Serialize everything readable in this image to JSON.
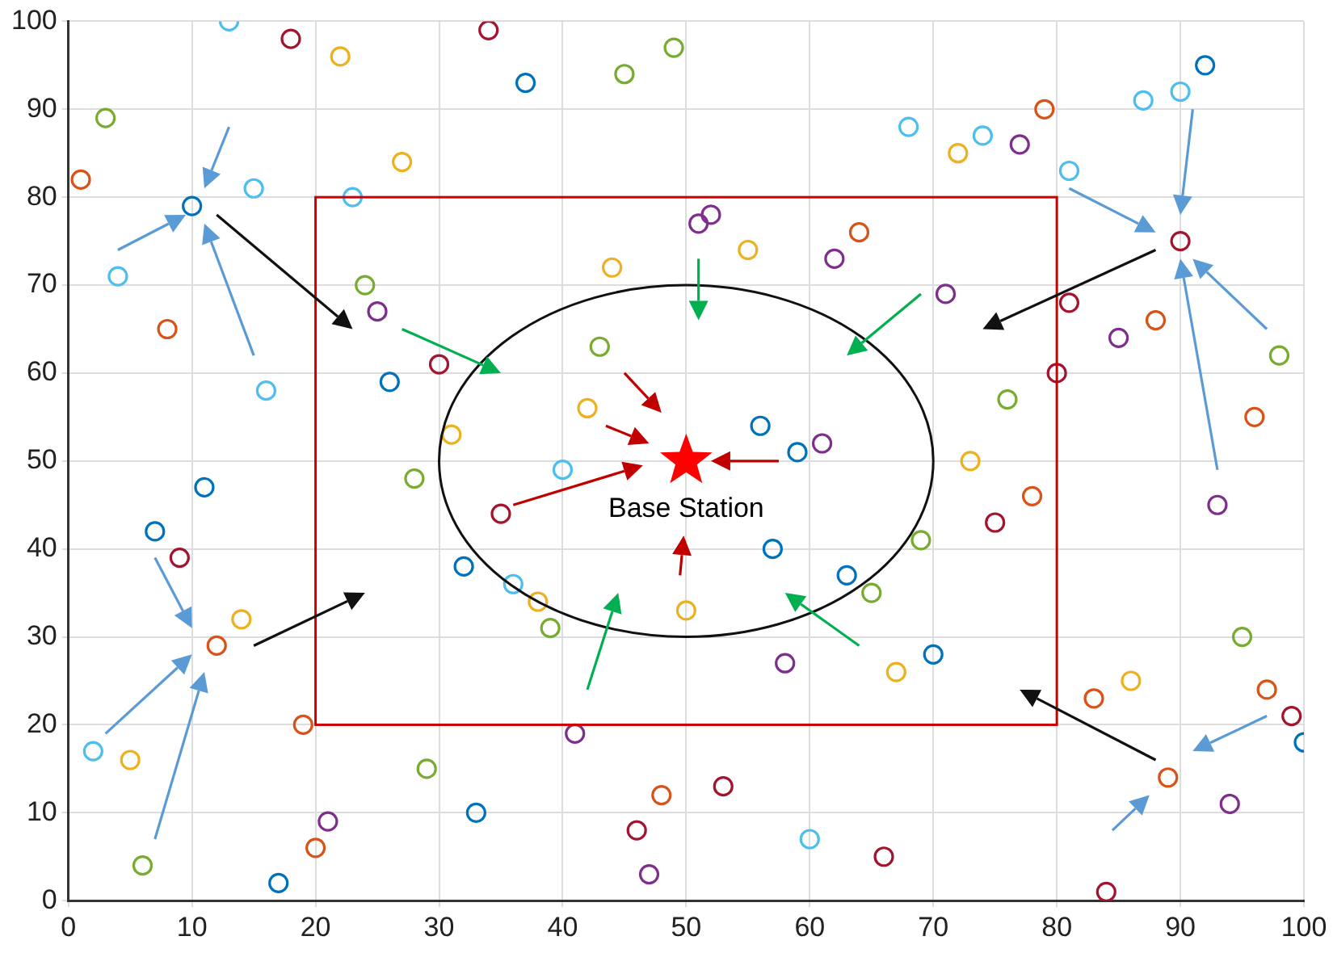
{
  "chart_data": {
    "type": "scatter",
    "xlim": [
      0,
      100
    ],
    "ylim": [
      0,
      100
    ],
    "xticks": [
      0,
      10,
      20,
      30,
      40,
      50,
      60,
      70,
      80,
      90,
      100
    ],
    "yticks": [
      0,
      10,
      20,
      30,
      40,
      50,
      60,
      70,
      80,
      90,
      100
    ],
    "grid": true,
    "marker": "circle",
    "series": [
      {
        "color": "#0072bd",
        "x": [
          10,
          26,
          11,
          7,
          32,
          33,
          17,
          37,
          56,
          59,
          57,
          63,
          70,
          92,
          100
        ],
        "values": [
          79,
          59,
          47,
          42,
          38,
          10,
          2,
          93,
          54,
          51,
          40,
          37,
          28,
          95,
          18
        ]
      },
      {
        "color": "#4dbeee",
        "x": [
          13,
          15,
          4,
          16,
          23,
          2,
          36,
          40,
          60,
          68,
          74,
          81,
          87,
          90
        ],
        "values": [
          100,
          81,
          71,
          58,
          80,
          17,
          36,
          49,
          7,
          88,
          87,
          83,
          91,
          92
        ]
      },
      {
        "color": "#d95319",
        "x": [
          1,
          8,
          12,
          19,
          20,
          48,
          64,
          79,
          88,
          96,
          78,
          83,
          97,
          89
        ],
        "values": [
          82,
          65,
          29,
          20,
          6,
          12,
          76,
          90,
          66,
          55,
          46,
          23,
          24,
          14
        ]
      },
      {
        "color": "#edb120",
        "x": [
          22,
          27,
          14,
          5,
          31,
          38,
          42,
          44,
          55,
          50,
          72,
          73,
          67,
          86
        ],
        "values": [
          96,
          84,
          32,
          16,
          53,
          34,
          56,
          72,
          74,
          33,
          85,
          50,
          26,
          25
        ]
      },
      {
        "color": "#7e2f8e",
        "x": [
          25,
          21,
          41,
          47,
          51,
          52,
          62,
          61,
          71,
          77,
          85,
          58,
          93,
          94
        ],
        "values": [
          67,
          9,
          19,
          3,
          77,
          78,
          73,
          52,
          69,
          86,
          64,
          27,
          45,
          11
        ]
      },
      {
        "color": "#77ac30",
        "x": [
          3,
          24,
          28,
          29,
          6,
          39,
          43,
          45,
          49,
          65,
          69,
          76,
          98,
          95
        ],
        "values": [
          89,
          70,
          48,
          15,
          4,
          31,
          63,
          94,
          97,
          35,
          41,
          57,
          62,
          30
        ]
      },
      {
        "color": "#a2142f",
        "x": [
          18,
          34,
          9,
          30,
          35,
          46,
          53,
          66,
          75,
          81,
          80,
          90,
          84,
          99
        ],
        "values": [
          98,
          99,
          39,
          61,
          44,
          8,
          13,
          5,
          43,
          68,
          60,
          75,
          1,
          21
        ]
      },
      {
        "name": "Base Station",
        "type": "scatter",
        "marker": "star",
        "color": "#ff0000",
        "x": [
          50
        ],
        "values": [
          50
        ]
      }
    ]
  }
}
